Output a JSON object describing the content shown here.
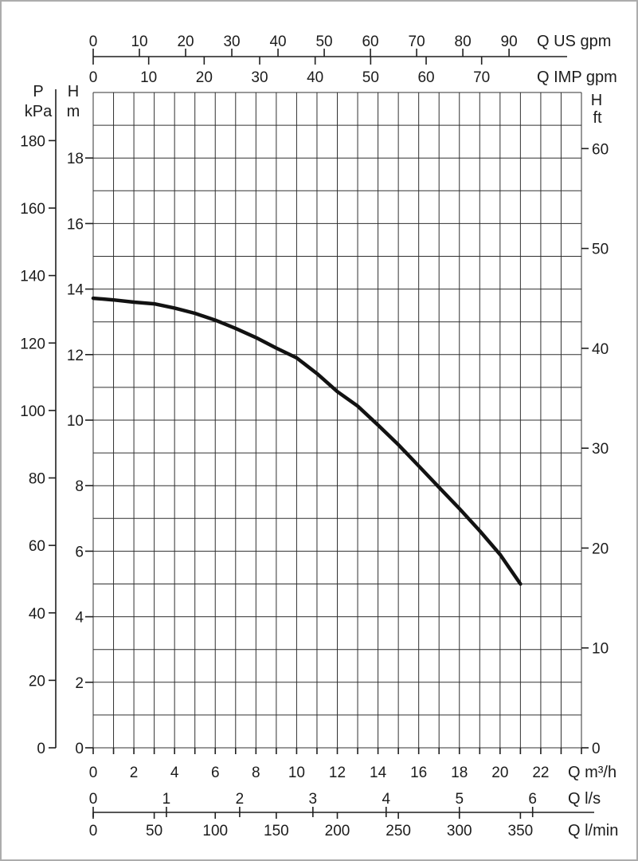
{
  "page": {
    "background": "#ffffff",
    "border_color": "#acacac"
  },
  "chart_data": {
    "type": "line",
    "title": "",
    "xlabel": "Q m³/h",
    "ylabel": "H m",
    "grid": {
      "on": true,
      "x_range_m3h": [
        0,
        24
      ],
      "x_step": 1,
      "y_range_m": [
        0,
        20
      ],
      "y_step": 1
    },
    "series": [
      {
        "name": "pump-head-curve",
        "color": "#121212",
        "points": [
          [
            0,
            13.72
          ],
          [
            1,
            13.67
          ],
          [
            2,
            13.6
          ],
          [
            3,
            13.55
          ],
          [
            4,
            13.42
          ],
          [
            5,
            13.26
          ],
          [
            6,
            13.05
          ],
          [
            7,
            12.8
          ],
          [
            8,
            12.52
          ],
          [
            9,
            12.2
          ],
          [
            10,
            11.9
          ],
          [
            11,
            11.42
          ],
          [
            12,
            10.87
          ],
          [
            13,
            10.43
          ],
          [
            14,
            9.85
          ],
          [
            15,
            9.25
          ],
          [
            16,
            8.6
          ],
          [
            17,
            7.95
          ],
          [
            18,
            7.3
          ],
          [
            19,
            6.62
          ],
          [
            20,
            5.9
          ],
          [
            21,
            5.0
          ]
        ]
      }
    ],
    "axes": {
      "top": [
        {
          "id": "us_gpm",
          "label": "Q US gpm",
          "ticks": [
            0,
            10,
            20,
            30,
            40,
            50,
            60,
            70,
            80,
            90
          ]
        },
        {
          "id": "imp_gpm",
          "label": "Q IMP gpm",
          "ticks": [
            0,
            10,
            20,
            30,
            40,
            50,
            60,
            70
          ]
        }
      ],
      "left": [
        {
          "id": "p_kpa",
          "label_lines": [
            "P",
            "kPa"
          ],
          "ticks": [
            180,
            160,
            140,
            120,
            100,
            80,
            60,
            40,
            20,
            0
          ]
        },
        {
          "id": "h_m",
          "label_lines": [
            "H",
            "m"
          ],
          "ticks": [
            18,
            16,
            14,
            12,
            10,
            8,
            6,
            4,
            2,
            0
          ]
        }
      ],
      "right": [
        {
          "id": "h_ft",
          "label_lines": [
            "H",
            "ft"
          ],
          "ticks": [
            60,
            50,
            40,
            30,
            20,
            10,
            0
          ]
        }
      ],
      "bottom": [
        {
          "id": "q_m3h",
          "label": "Q m³/h",
          "ticks": [
            0,
            2,
            4,
            6,
            8,
            10,
            12,
            14,
            16,
            18,
            20,
            22
          ]
        },
        {
          "id": "q_ls",
          "label": "Q l/s",
          "ticks": [
            0,
            1,
            2,
            3,
            4,
            5,
            6
          ]
        },
        {
          "id": "q_lmin",
          "label": "Q l/min",
          "ticks": [
            0,
            50,
            100,
            150,
            200,
            250,
            300,
            350
          ]
        }
      ]
    }
  }
}
